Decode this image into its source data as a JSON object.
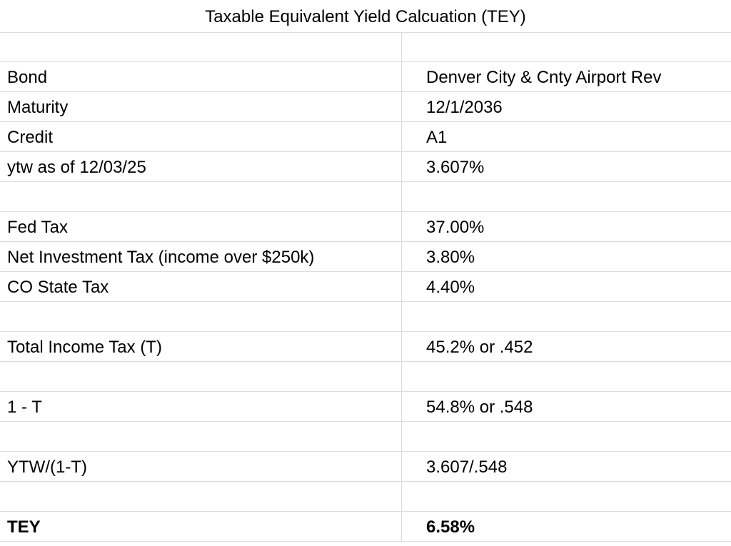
{
  "title": "Taxable Equivalent Yield Calcuation (TEY)",
  "groups": [
    {
      "rows": [
        {
          "label": "Bond",
          "value": "Denver City & Cnty Airport Rev"
        },
        {
          "label": "Maturity",
          "value": "12/1/2036"
        },
        {
          "label": "Credit",
          "value": "A1"
        },
        {
          "label": "ytw as of 12/03/25",
          "value": "3.607%"
        }
      ]
    },
    {
      "rows": [
        {
          "label": "Fed Tax",
          "value": "37.00%"
        },
        {
          "label": "Net Investment Tax (income over $250k)",
          "value": "3.80%"
        },
        {
          "label": "CO State Tax",
          "value": "4.40%"
        }
      ]
    },
    {
      "rows": [
        {
          "label": "Total Income Tax (T)",
          "value": "45.2% or .452"
        }
      ]
    },
    {
      "rows": [
        {
          "label": "1 - T",
          "value": "54.8% or .548"
        }
      ]
    },
    {
      "rows": [
        {
          "label": "YTW/(1-T)",
          "value": "3.607/.548"
        }
      ]
    },
    {
      "rows": [
        {
          "label": "TEY",
          "value": "6.58%"
        }
      ]
    }
  ]
}
